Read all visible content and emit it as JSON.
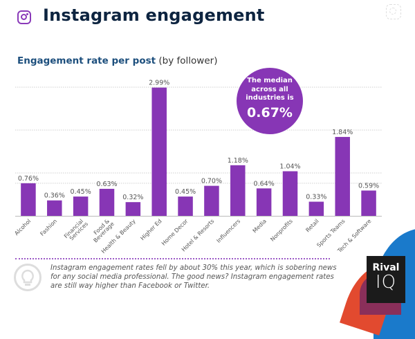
{
  "header": {
    "title": "Instagram engagement",
    "logo_icon": "instagram-icon"
  },
  "subtitle": {
    "bold": "Engagement rate per post",
    "light": "(by follower)"
  },
  "median_callout": {
    "text_lines": [
      "The median",
      "across all",
      "industries is"
    ],
    "value": "0.67%"
  },
  "note": {
    "icon": "lightbulb-icon",
    "text": "Instagram engagement rates fell by about 30% this year, which is sobering news for any social media professional. The good news? Instagram engagement rates are still way higher than Facebook or Twitter."
  },
  "brand": {
    "line1": "Rival",
    "line2": "IQ"
  },
  "colors": {
    "bar": "#8736b5",
    "title": "#0d2440",
    "subtitle": "#1d4f7d"
  },
  "chart_data": {
    "type": "bar",
    "title": "Engagement rate per post (by follower)",
    "xlabel": "",
    "ylabel": "",
    "ylim": [
      0,
      3.0
    ],
    "grid": true,
    "gridlines": [
      1.0,
      2.0,
      3.0,
      0.75
    ],
    "categories": [
      "Alcohol",
      "Fashion",
      "Financial Services",
      "Food & Beverage",
      "Health & Beauty",
      "Higher Ed",
      "Home Decor",
      "Hotel & Resorts",
      "Influencers",
      "Media",
      "Nonprofits",
      "Retail",
      "Sports Teams",
      "Tech & Software"
    ],
    "values": [
      0.76,
      0.36,
      0.45,
      0.63,
      0.32,
      2.99,
      0.45,
      0.7,
      1.18,
      0.64,
      1.04,
      0.33,
      1.84,
      0.59
    ],
    "labels": [
      "0.76%",
      "0.36%",
      "0.45%",
      "0.63%",
      "0.32%",
      "2.99%",
      "0.45%",
      "0.70%",
      "1.18%",
      "0.64%",
      "1.04%",
      "0.33%",
      "1.84%",
      "0.59%"
    ],
    "annotation": "The median across all industries is 0.67%"
  }
}
